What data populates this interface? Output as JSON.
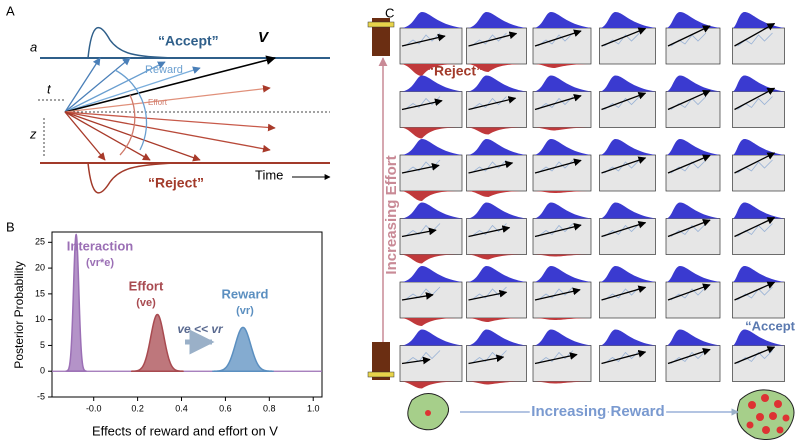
{
  "panel_a": {
    "label": "A",
    "a": "a",
    "t": "t",
    "z": "z",
    "accept": "“Accept”",
    "v": "V",
    "reward": "Reward",
    "effort": "Effort",
    "reject": "“Reject”",
    "time": "Time"
  },
  "chart_data": {
    "type": "density",
    "label": "B",
    "ylabel": "Posterior Probability",
    "xlabel": "Effects of reward and effort on V",
    "xlim": [
      -0.19,
      1.04
    ],
    "ylim": [
      -5,
      27
    ],
    "xticks": [
      {
        "value": 0,
        "label": "-0.0"
      },
      0.2,
      0.4,
      0.6,
      0.8,
      {
        "value": 1,
        "label": "1.0"
      }
    ],
    "yticks": [
      -5,
      0,
      5,
      10,
      15,
      20,
      25
    ],
    "series": [
      {
        "name": "Interaction",
        "symbol": "(vr*e)",
        "color": "#9b6fb5",
        "mean": -0.08,
        "peak": 26.5,
        "sd": 0.012
      },
      {
        "name": "Effort",
        "symbol": "(ve)",
        "color": "#a84a50",
        "mean": 0.29,
        "peak": 11,
        "sd": 0.03
      },
      {
        "name": "Reward",
        "symbol": "(vr)",
        "color": "#5b8fc0",
        "mean": 0.68,
        "peak": 8.5,
        "sd": 0.035
      }
    ],
    "annotation": "ve << vr"
  },
  "panel_c": {
    "label": "C",
    "effort_axis": "Increasing Effort",
    "reward_axis": "Increasing Reward",
    "reject": "“Reject”",
    "accept": "“Accept"
  }
}
